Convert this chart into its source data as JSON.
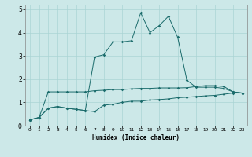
{
  "xlabel": "Humidex (Indice chaleur)",
  "bg_color": "#cce8e8",
  "grid_color": "#aad4d4",
  "line_color": "#1a6b6b",
  "xlim": [
    -0.5,
    23.5
  ],
  "ylim": [
    0,
    5.2
  ],
  "xticks": [
    0,
    1,
    2,
    3,
    4,
    5,
    6,
    7,
    8,
    9,
    10,
    11,
    12,
    13,
    14,
    15,
    16,
    17,
    18,
    19,
    20,
    21,
    22,
    23
  ],
  "yticks": [
    0,
    1,
    2,
    3,
    4,
    5
  ],
  "line1_x": [
    0,
    1,
    2,
    3,
    4,
    5,
    6,
    7,
    8,
    9,
    10,
    11,
    12,
    13,
    14,
    15,
    16,
    17,
    18,
    19,
    20,
    21,
    22,
    23
  ],
  "line1_y": [
    0.25,
    0.35,
    0.75,
    0.82,
    0.75,
    0.7,
    0.65,
    0.6,
    0.88,
    0.92,
    1.0,
    1.05,
    1.05,
    1.1,
    1.12,
    1.15,
    1.2,
    1.22,
    1.25,
    1.28,
    1.3,
    1.35,
    1.4,
    1.4
  ],
  "line2_x": [
    0,
    1,
    2,
    3,
    4,
    5,
    6,
    7,
    8,
    9,
    10,
    11,
    12,
    13,
    14,
    15,
    16,
    17,
    18,
    19,
    20,
    21,
    22,
    23
  ],
  "line2_y": [
    0.25,
    0.35,
    1.45,
    1.45,
    1.45,
    1.45,
    1.45,
    1.5,
    1.52,
    1.55,
    1.55,
    1.58,
    1.6,
    1.6,
    1.62,
    1.62,
    1.62,
    1.63,
    1.68,
    1.72,
    1.72,
    1.68,
    1.45,
    1.4
  ],
  "line3_x": [
    0,
    1,
    2,
    3,
    4,
    5,
    6,
    7,
    8,
    9,
    10,
    11,
    12,
    13,
    14,
    15,
    16,
    17,
    18,
    19,
    20,
    21,
    22,
    23
  ],
  "line3_y": [
    0.25,
    0.35,
    0.75,
    0.82,
    0.75,
    0.7,
    0.65,
    2.95,
    3.05,
    3.6,
    3.6,
    3.65,
    4.85,
    4.0,
    4.3,
    4.7,
    3.8,
    1.95,
    1.65,
    1.65,
    1.65,
    1.6,
    1.45,
    1.4
  ]
}
